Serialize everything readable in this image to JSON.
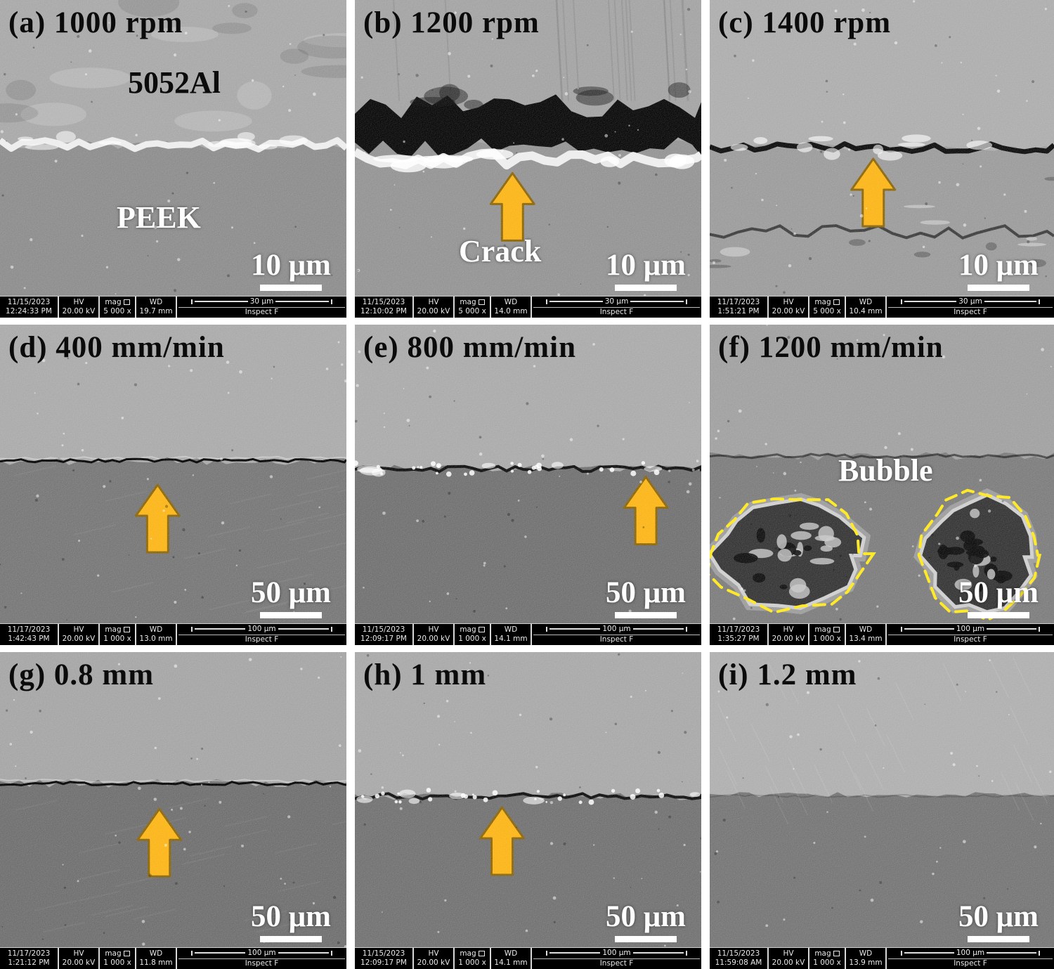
{
  "figure": {
    "description": "3x3 grid of SEM cross-section micrographs of 5052Al/PEEK joint interfaces under varying process parameters",
    "colors": {
      "arrow_fill": "#FBB414",
      "arrow_outline": "#8A6508",
      "bubble_outline_yellow": "#FFE81A",
      "label_color": "#0B0B0B",
      "overlay_text_color": "#FFFFFF"
    },
    "meta_labels": {
      "hv": "HV",
      "mag": "mag",
      "mag_icon": "frame-icon",
      "wd": "WD",
      "detector": "Inspect F"
    },
    "panels": [
      {
        "id": "a",
        "label": "(a) 1000 rpm",
        "top_material": "5052Al",
        "bottom_material": "PEEK",
        "crack_label": "",
        "bubble_label": "",
        "scale_text": "10 μm",
        "ruler_text": "30 μm",
        "date": "11/15/2023",
        "time": "12:24:33 PM",
        "hv": "20.00 kV",
        "mag": "5 000 x",
        "wd": "19.7 mm"
      },
      {
        "id": "b",
        "label": "(b) 1200 rpm",
        "top_material": "",
        "bottom_material": "",
        "crack_label": "Crack",
        "bubble_label": "",
        "scale_text": "10 μm",
        "ruler_text": "30 μm",
        "date": "11/15/2023",
        "time": "12:10:02 PM",
        "hv": "20.00 kV",
        "mag": "5 000 x",
        "wd": "14.0 mm"
      },
      {
        "id": "c",
        "label": "(c) 1400 rpm",
        "top_material": "",
        "bottom_material": "",
        "crack_label": "",
        "bubble_label": "",
        "scale_text": "10 μm",
        "ruler_text": "30 μm",
        "date": "11/17/2023",
        "time": "1:51:21 PM",
        "hv": "20.00 kV",
        "mag": "5 000 x",
        "wd": "10.4 mm"
      },
      {
        "id": "d",
        "label": "(d) 400 mm/min",
        "top_material": "",
        "bottom_material": "",
        "crack_label": "",
        "bubble_label": "",
        "scale_text": "50 μm",
        "ruler_text": "100 μm",
        "date": "11/17/2023",
        "time": "1:42:43 PM",
        "hv": "20.00 kV",
        "mag": "1 000 x",
        "wd": "13.0 mm"
      },
      {
        "id": "e",
        "label": "(e) 800 mm/min",
        "top_material": "",
        "bottom_material": "",
        "crack_label": "",
        "bubble_label": "",
        "scale_text": "50 μm",
        "ruler_text": "100 μm",
        "date": "11/15/2023",
        "time": "12:09:17 PM",
        "hv": "20.00 kV",
        "mag": "1 000 x",
        "wd": "14.1 mm"
      },
      {
        "id": "f",
        "label": "(f) 1200 mm/min",
        "top_material": "",
        "bottom_material": "",
        "crack_label": "",
        "bubble_label": "Bubble",
        "scale_text": "50 μm",
        "ruler_text": "100 μm",
        "date": "11/17/2023",
        "time": "1:35:27 PM",
        "hv": "20.00 kV",
        "mag": "1 000 x",
        "wd": "13.4 mm"
      },
      {
        "id": "g",
        "label": "(g) 0.8 mm",
        "top_material": "",
        "bottom_material": "",
        "crack_label": "",
        "bubble_label": "",
        "scale_text": "50 μm",
        "ruler_text": "100 μm",
        "date": "11/17/2023",
        "time": "1:21:12 PM",
        "hv": "20.00 kV",
        "mag": "1 000 x",
        "wd": "11.8 mm"
      },
      {
        "id": "h",
        "label": "(h) 1 mm",
        "top_material": "",
        "bottom_material": "",
        "crack_label": "",
        "bubble_label": "",
        "scale_text": "50 μm",
        "ruler_text": "100 μm",
        "date": "11/15/2023",
        "time": "12:09:17 PM",
        "hv": "20.00 kV",
        "mag": "1 000 x",
        "wd": "14.1 mm"
      },
      {
        "id": "i",
        "label": "(i) 1.2 mm",
        "top_material": "",
        "bottom_material": "",
        "crack_label": "",
        "bubble_label": "",
        "scale_text": "50 μm",
        "ruler_text": "100 μm",
        "date": "11/15/2023",
        "time": "11:59:08 AM",
        "hv": "20.00 kV",
        "mag": "1 000 x",
        "wd": "13.9 mm"
      }
    ]
  }
}
